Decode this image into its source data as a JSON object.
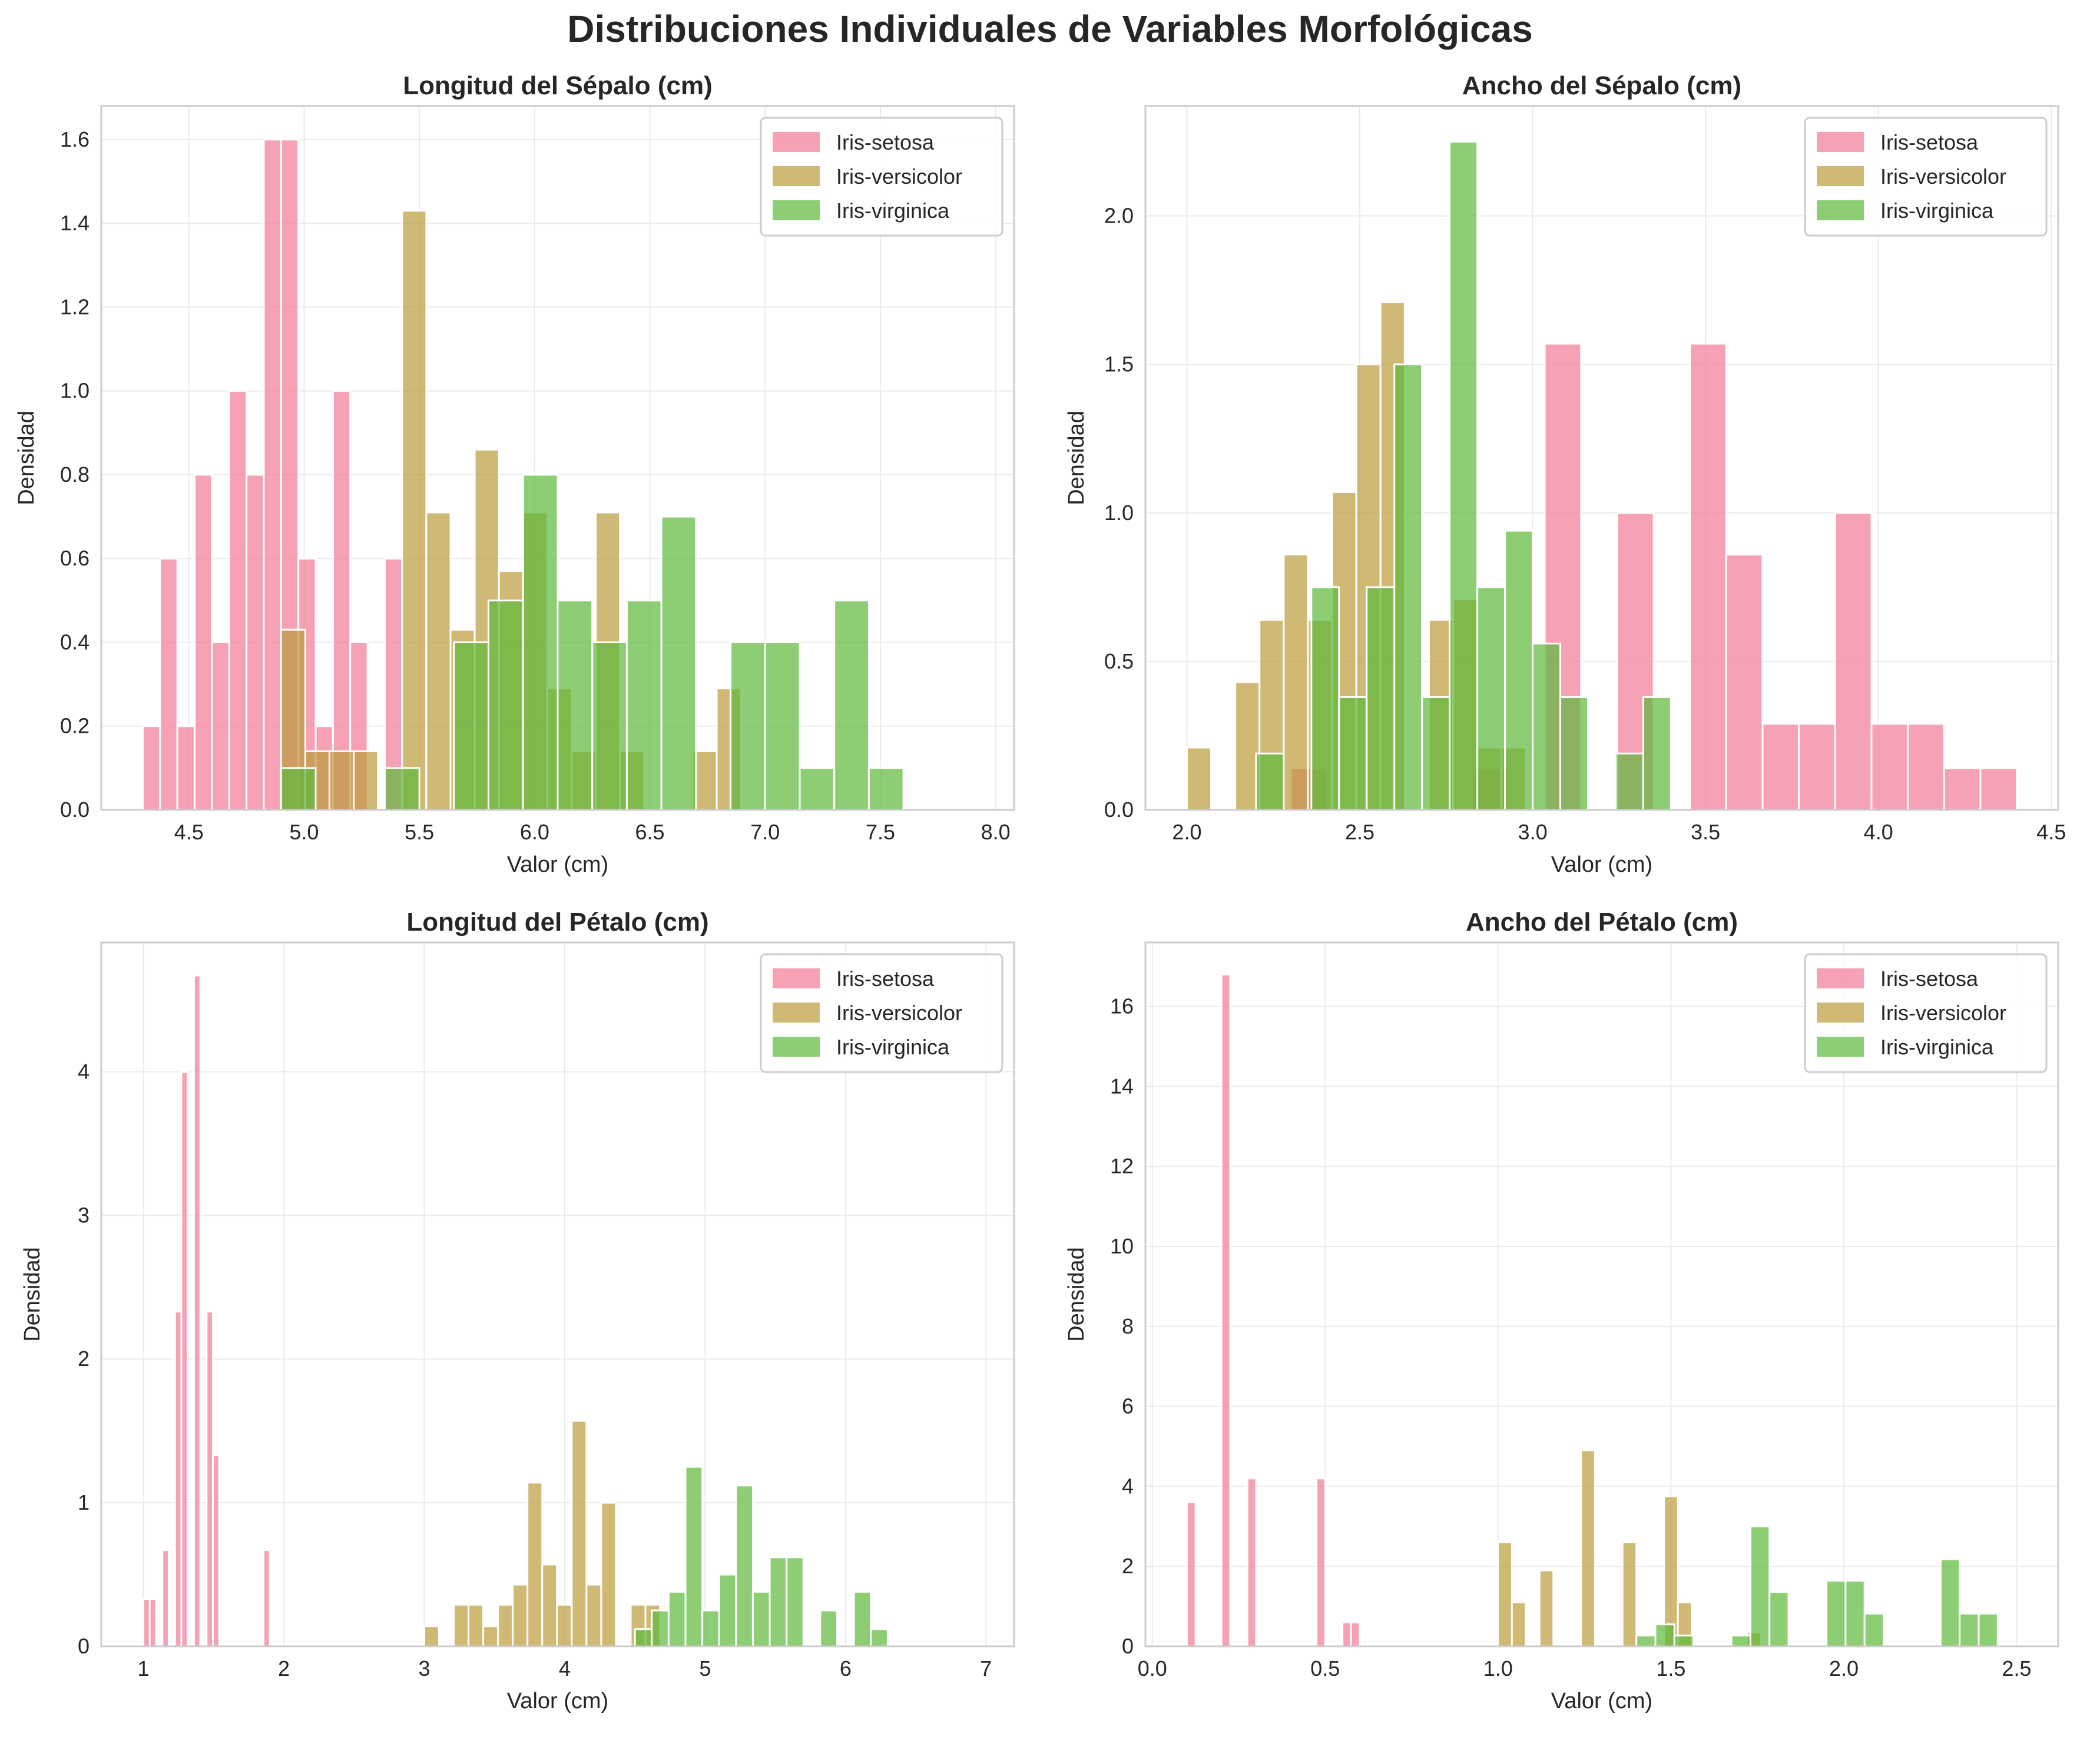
{
  "suptitle": "Distribuciones Individuales de Variables Morfológicas",
  "legend_labels": [
    "Iris-setosa",
    "Iris-versicolor",
    "Iris-virginica"
  ],
  "colors": {
    "setosa": "#f37b94",
    "versicolor": "#bb9b3a",
    "virginica": "#5cb93b"
  },
  "chart_data": [
    {
      "type": "bar",
      "title": "Longitud del Sépalo (cm)",
      "xlabel": "Valor (cm)",
      "ylabel": "Densidad",
      "xlim": [
        4.12,
        8.08
      ],
      "ylim": [
        0,
        1.68
      ],
      "xticks": [
        4.5,
        5.0,
        5.5,
        6.0,
        6.5,
        7.0,
        7.5,
        8.0
      ],
      "xtick_labels": [
        "4.5",
        "5.0",
        "5.5",
        "6.0",
        "6.5",
        "7.0",
        "7.5",
        "8.0"
      ],
      "yticks": [
        0,
        0.2,
        0.4,
        0.6,
        0.8,
        1.0,
        1.2,
        1.4,
        1.6
      ],
      "ytick_labels": [
        "0.0",
        "0.2",
        "0.4",
        "0.6",
        "0.8",
        "1.0",
        "1.2",
        "1.4",
        "1.6"
      ],
      "legend": "top-right",
      "series": [
        {
          "name": "Iris-setosa",
          "bin_range": [
            4.3,
            5.8
          ],
          "values": [
            0.2,
            0.6,
            0.2,
            0.8,
            0.4,
            1.0,
            0.8,
            1.6,
            1.6,
            0.6,
            0.2,
            1.0,
            0.4,
            0,
            0.6,
            0,
            0,
            0,
            0,
            0
          ]
        },
        {
          "name": "Iris-versicolor",
          "bin_range": [
            4.9,
            7.0
          ],
          "values": [
            0.43,
            0.14,
            0.14,
            0.14,
            0,
            1.43,
            0.71,
            0.43,
            0.86,
            0.57,
            0.71,
            0.29,
            0.14,
            0.71,
            0.14,
            0,
            0,
            0.14,
            0.29,
            0
          ]
        },
        {
          "name": "Iris-virginica",
          "bin_range": [
            4.9,
            7.9
          ],
          "values": [
            0.1,
            0,
            0,
            0.1,
            0,
            0.4,
            0.5,
            0.8,
            0.5,
            0.4,
            0.5,
            0.7,
            0,
            0.4,
            0.4,
            0.1,
            0.5,
            0.1,
            0,
            0
          ]
        }
      ]
    },
    {
      "type": "bar",
      "title": "Ancho del Sépalo (cm)",
      "xlabel": "Valor (cm)",
      "ylabel": "Densidad",
      "xlim": [
        1.88,
        4.52
      ],
      "ylim": [
        0,
        2.37
      ],
      "xticks": [
        2.0,
        2.5,
        3.0,
        3.5,
        4.0,
        4.5
      ],
      "xtick_labels": [
        "2.0",
        "2.5",
        "3.0",
        "3.5",
        "4.0",
        "4.5"
      ],
      "yticks": [
        0,
        0.5,
        1.0,
        1.5,
        2.0
      ],
      "ytick_labels": [
        "0.0",
        "0.5",
        "1.0",
        "1.5",
        "2.0"
      ],
      "legend": "top-right",
      "series": [
        {
          "name": "Iris-setosa",
          "bin_range": [
            2.3,
            4.4
          ],
          "values": [
            0.14,
            0,
            0,
            0,
            0,
            0.14,
            0,
            1.57,
            0,
            1.0,
            0,
            1.57,
            0.86,
            0.29,
            0.29,
            1.0,
            0.29,
            0.29,
            0.14,
            0.14
          ]
        },
        {
          "name": "Iris-versicolor",
          "bin_range": [
            2.0,
            3.4
          ],
          "values": [
            0.21,
            0,
            0.43,
            0.64,
            0.86,
            0.64,
            1.07,
            1.5,
            1.71,
            0,
            0.64,
            0.71,
            0.21,
            0.21,
            0,
            0,
            0,
            0,
            0,
            0
          ]
        },
        {
          "name": "Iris-virginica",
          "bin_range": [
            2.2,
            3.8
          ],
          "values": [
            0.19,
            0,
            0.75,
            0.38,
            0.75,
            1.5,
            0.38,
            2.25,
            0.75,
            0.94,
            0.56,
            0.38,
            0,
            0.19,
            0.38,
            0,
            0,
            0,
            0,
            0
          ]
        }
      ]
    },
    {
      "type": "bar",
      "title": "Longitud del Pétalo (cm)",
      "xlabel": "Valor (cm)",
      "ylabel": "Densidad",
      "xlim": [
        0.7,
        7.2
      ],
      "ylim": [
        0,
        4.9
      ],
      "xticks": [
        1,
        2,
        3,
        4,
        5,
        6,
        7
      ],
      "xtick_labels": [
        "1",
        "2",
        "3",
        "4",
        "5",
        "6",
        "7"
      ],
      "yticks": [
        0,
        1,
        2,
        3,
        4
      ],
      "ytick_labels": [
        "0",
        "1",
        "2",
        "3",
        "4"
      ],
      "legend": "top-right",
      "series": [
        {
          "name": "Iris-setosa",
          "bin_range": [
            1.0,
            1.9
          ],
          "values": [
            0.33,
            0.33,
            0,
            0.67,
            0,
            2.33,
            4.0,
            0,
            4.67,
            0,
            2.33,
            1.33,
            0,
            0,
            0,
            0,
            0,
            0,
            0,
            0.67
          ]
        },
        {
          "name": "Iris-versicolor",
          "bin_range": [
            3.0,
            5.1
          ],
          "values": [
            0.14,
            0,
            0.29,
            0.29,
            0.14,
            0.29,
            0.43,
            1.14,
            0.57,
            0.29,
            1.57,
            0.43,
            1.0,
            0,
            0.29,
            0.29,
            0,
            0,
            0,
            0
          ]
        },
        {
          "name": "Iris-virginica",
          "bin_range": [
            4.5,
            6.9
          ],
          "values": [
            0.12,
            0.25,
            0.38,
            1.25,
            0.25,
            0.5,
            1.12,
            0.38,
            0.62,
            0.62,
            0,
            0.25,
            0,
            0.38,
            0.12,
            0,
            0,
            0,
            0,
            0
          ]
        }
      ]
    },
    {
      "type": "bar",
      "title": "Ancho del Pétalo (cm)",
      "xlabel": "Valor (cm)",
      "ylabel": "Densidad",
      "xlim": [
        -0.02,
        2.62
      ],
      "ylim": [
        0,
        17.6
      ],
      "xticks": [
        0.0,
        0.5,
        1.0,
        1.5,
        2.0,
        2.5
      ],
      "xtick_labels": [
        "0.0",
        "0.5",
        "1.0",
        "1.5",
        "2.0",
        "2.5"
      ],
      "yticks": [
        0,
        2,
        4,
        6,
        8,
        10,
        12,
        14,
        16
      ],
      "ytick_labels": [
        "0",
        "2",
        "4",
        "6",
        "8",
        "10",
        "12",
        "14",
        "16"
      ],
      "legend": "top-right",
      "series": [
        {
          "name": "Iris-setosa",
          "bin_range": [
            0.1,
            0.6
          ],
          "values": [
            3.6,
            0,
            0,
            0,
            16.8,
            0,
            0,
            4.2,
            0,
            0,
            0,
            0,
            0,
            0,
            0,
            4.2,
            0,
            0,
            0.6,
            0.6
          ]
        },
        {
          "name": "Iris-versicolor",
          "bin_range": [
            1.0,
            1.8
          ],
          "values": [
            2.6,
            1.1,
            0,
            1.9,
            0,
            0,
            4.9,
            0,
            0,
            2.6,
            0,
            0,
            3.75,
            1.1,
            0,
            0,
            0,
            0,
            0.35,
            0
          ]
        },
        {
          "name": "Iris-virginica",
          "bin_range": [
            1.4,
            2.5
          ],
          "values": [
            0.27,
            0.55,
            0.27,
            0,
            0,
            0.27,
            3.0,
            1.36,
            0,
            0,
            1.64,
            1.64,
            0.82,
            0,
            0,
            0,
            2.18,
            0.82,
            0.82,
            0
          ]
        }
      ]
    }
  ]
}
